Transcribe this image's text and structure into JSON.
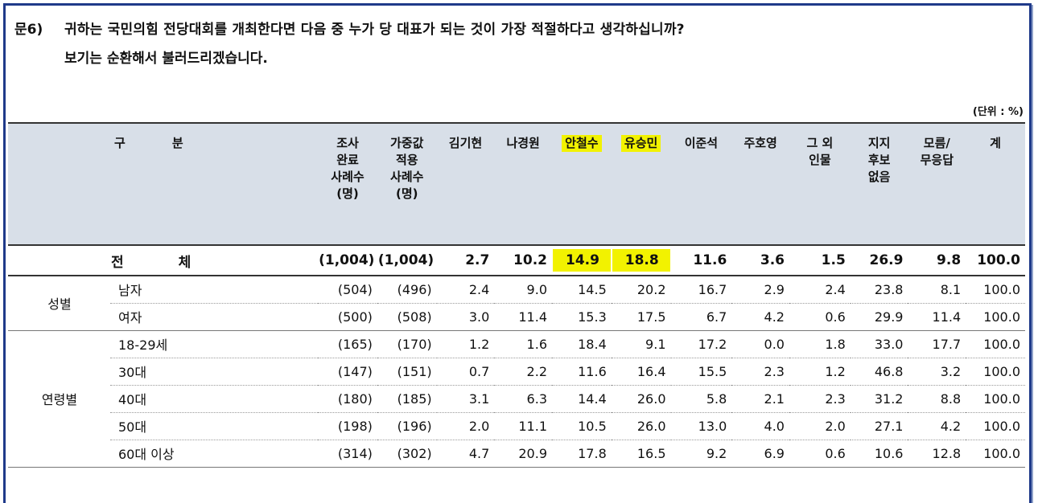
{
  "question": {
    "number": "문6)",
    "line1": "귀하는 국민의힘 전당대회를 개최한다면 다음 중 누가 당 대표가 되는 것이 가장 적절하다고 생각하십니까?",
    "line2": "보기는 순환해서 불러드리겠습니다."
  },
  "unit": "(단위 : %)",
  "header": {
    "gubun": [
      "구",
      "분"
    ],
    "columns": [
      [
        "조사",
        "완료",
        "사례수",
        "(명)"
      ],
      [
        "가중값",
        "적용",
        "사례수",
        "(명)"
      ],
      [
        "김기현"
      ],
      [
        "나경원"
      ],
      [
        "안철수"
      ],
      [
        "유승민"
      ],
      [
        "이준석"
      ],
      [
        "주호영"
      ],
      [
        "그 외",
        "인물"
      ],
      [
        "지지",
        "후보",
        "없음"
      ],
      [
        "모름/",
        "무응답"
      ],
      [
        "계"
      ]
    ]
  },
  "highlight_color": "#f2f200",
  "total": {
    "label": [
      "전",
      "체"
    ],
    "values": [
      "(1,004)",
      "(1,004)",
      "2.7",
      "10.2",
      "14.9",
      "18.8",
      "11.6",
      "3.6",
      "1.5",
      "26.9",
      "9.8",
      "100.0"
    ]
  },
  "groups": [
    {
      "name": "성별",
      "rows": [
        {
          "label": "남자",
          "values": [
            "(504)",
            "(496)",
            "2.4",
            "9.0",
            "14.5",
            "20.2",
            "16.7",
            "2.9",
            "2.4",
            "23.8",
            "8.1",
            "100.0"
          ]
        },
        {
          "label": "여자",
          "values": [
            "(500)",
            "(508)",
            "3.0",
            "11.4",
            "15.3",
            "17.5",
            "6.7",
            "4.2",
            "0.6",
            "29.9",
            "11.4",
            "100.0"
          ]
        }
      ]
    },
    {
      "name": "연령별",
      "rows": [
        {
          "label": "18-29세",
          "values": [
            "(165)",
            "(170)",
            "1.2",
            "1.6",
            "18.4",
            "9.1",
            "17.2",
            "0.0",
            "1.8",
            "33.0",
            "17.7",
            "100.0"
          ]
        },
        {
          "label": "30대",
          "values": [
            "(147)",
            "(151)",
            "0.7",
            "2.2",
            "11.6",
            "16.4",
            "15.5",
            "2.3",
            "1.2",
            "46.8",
            "3.2",
            "100.0"
          ]
        },
        {
          "label": "40대",
          "values": [
            "(180)",
            "(185)",
            "3.1",
            "6.3",
            "14.4",
            "26.0",
            "5.8",
            "2.1",
            "2.3",
            "31.2",
            "8.8",
            "100.0"
          ]
        },
        {
          "label": "50대",
          "values": [
            "(198)",
            "(196)",
            "2.0",
            "11.1",
            "10.5",
            "26.0",
            "13.0",
            "4.0",
            "2.0",
            "27.1",
            "4.2",
            "100.0"
          ]
        },
        {
          "label": "60대 이상",
          "values": [
            "(314)",
            "(302)",
            "4.7",
            "20.9",
            "17.8",
            "16.5",
            "9.2",
            "6.9",
            "0.6",
            "10.6",
            "12.8",
            "100.0"
          ]
        }
      ]
    }
  ]
}
